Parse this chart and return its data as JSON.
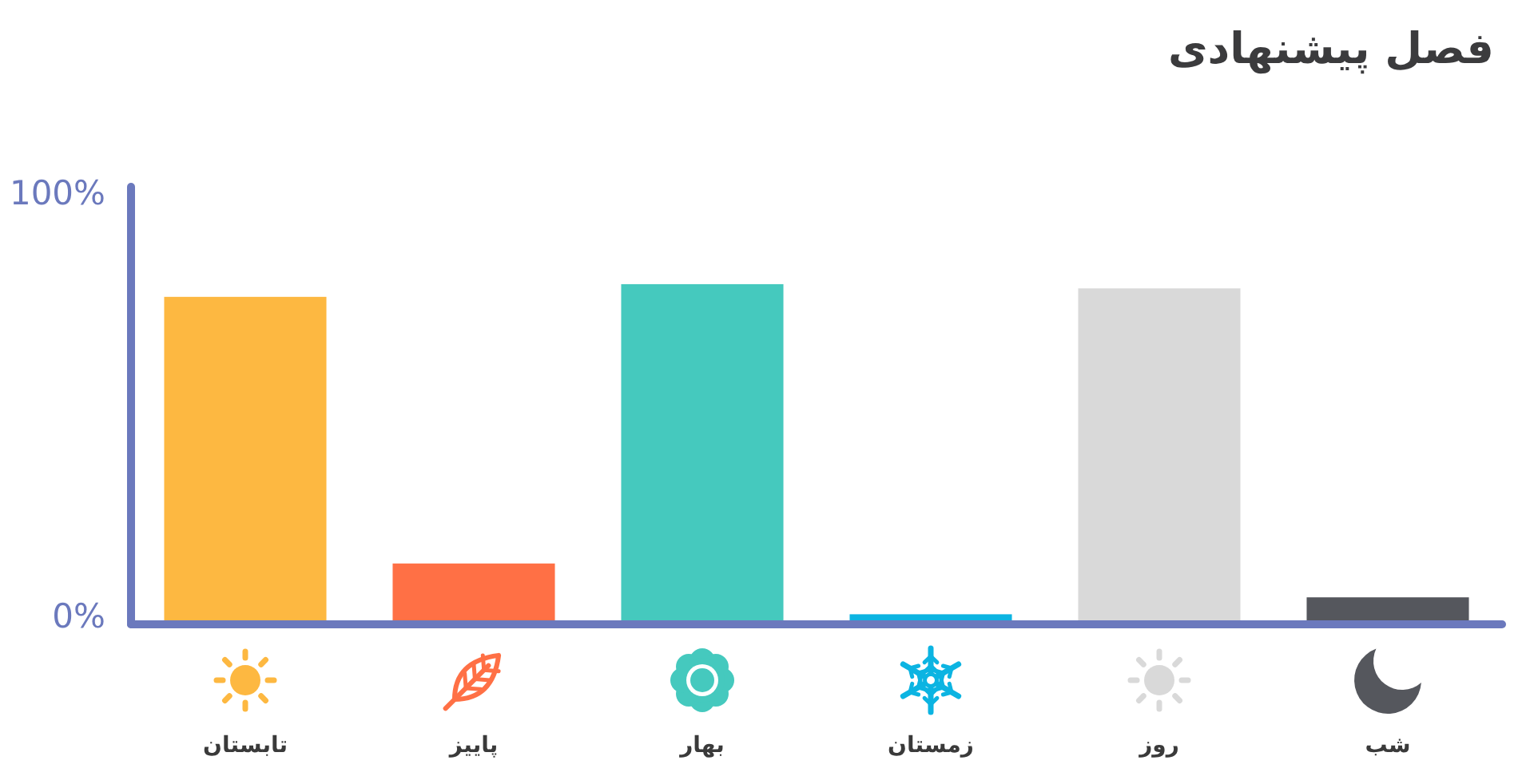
{
  "chart_data": {
    "type": "bar",
    "title": "فصل پیشنهادی",
    "categories": [
      "تابستان",
      "پاییز",
      "بهار",
      "زمستان",
      "روز",
      "شب"
    ],
    "values": [
      77,
      14,
      80,
      2,
      79,
      6
    ],
    "colors": [
      "#fdb841",
      "#ff7045",
      "#45c9be",
      "#0cb4e2",
      "#d9d9d9",
      "#55575d"
    ],
    "ylim": [
      0,
      103
    ],
    "yticks": [
      {
        "value": 100,
        "label": "100%"
      },
      {
        "value": 0,
        "label": "0%"
      }
    ]
  }
}
